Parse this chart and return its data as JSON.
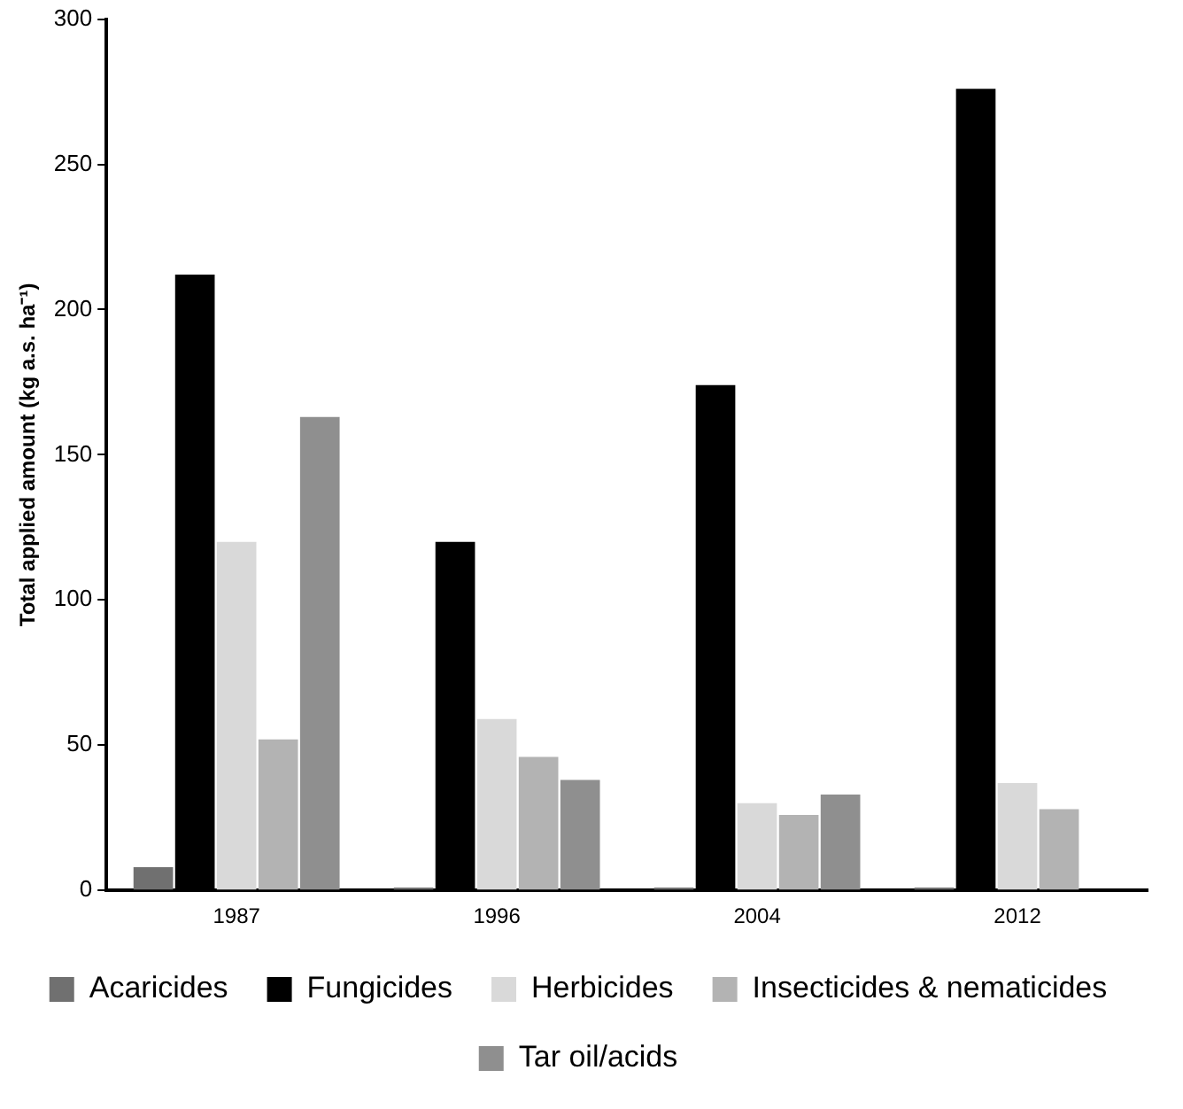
{
  "chart_data": {
    "type": "bar",
    "ylabel": "Total applied amount (kg a.s. ha⁻¹)",
    "categories": [
      "1987",
      "1996",
      "2004",
      "2012"
    ],
    "series": [
      {
        "name": "Acaricides",
        "color": "#707070",
        "values": [
          8,
          1,
          1,
          1
        ]
      },
      {
        "name": "Fungicides",
        "color": "#000000",
        "values": [
          212,
          120,
          174,
          276
        ]
      },
      {
        "name": "Herbicides",
        "color": "#d9d9d9",
        "values": [
          120,
          59,
          30,
          37
        ]
      },
      {
        "name": "Insecticides & nematicides",
        "color": "#b3b3b3",
        "values": [
          52,
          46,
          26,
          28
        ]
      },
      {
        "name": "Tar oil/acids",
        "color": "#8f8f8f",
        "values": [
          163,
          38,
          33,
          null
        ]
      }
    ],
    "ylim": [
      0,
      300
    ],
    "yticks": [
      0,
      50,
      100,
      150,
      200,
      250,
      300
    ],
    "grid": false,
    "legend": "bottom"
  }
}
